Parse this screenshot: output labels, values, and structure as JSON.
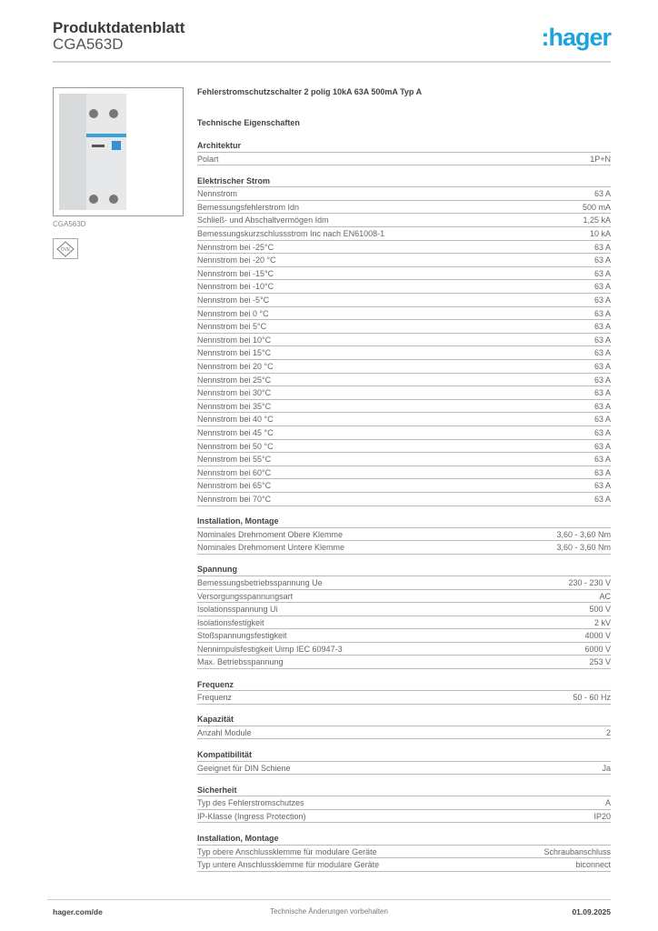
{
  "header": {
    "title": "Produktdatenblatt",
    "code": "CGA563D",
    "logo": ":hager",
    "logo_color": "#1ea3dc"
  },
  "image_caption": "CGA563D",
  "cert_icon": "vde-certification-icon",
  "product_name": "Fehlerstromschutzschalter 2 polig 10kA 63A 500mA Typ A",
  "tech_heading": "Technische Eigenschaften",
  "sections": [
    {
      "title": "Architektur",
      "rows": [
        [
          "Polart",
          "1P+N"
        ]
      ]
    },
    {
      "title": "Elektrischer Strom",
      "rows": [
        [
          "Nennstrom",
          "63 A"
        ],
        [
          "Bemessungsfehlerstrom Idn",
          "500 mA"
        ],
        [
          "Schließ- und Abschaltvermögen Idm",
          "1,25 kA"
        ],
        [
          "Bemessungskurzschlussstrom Inc nach EN61008-1",
          "10 kA"
        ],
        [
          "Nennstrom bei -25°C",
          "63 A"
        ],
        [
          "Nennstrom bei -20 °C",
          "63 A"
        ],
        [
          "Nennstrom bei -15°C",
          "63 A"
        ],
        [
          "Nennstrom bei -10°C",
          "63 A"
        ],
        [
          "Nennstrom bei -5°C",
          "63 A"
        ],
        [
          "Nennstrom bei 0 °C",
          "63 A"
        ],
        [
          "Nennstrom bei 5°C",
          "63 A"
        ],
        [
          "Nennstrom bei 10°C",
          "63 A"
        ],
        [
          "Nennstrom bei 15°C",
          "63 A"
        ],
        [
          "Nennstrom bei 20 °C",
          "63 A"
        ],
        [
          "Nennstrom bei 25°C",
          "63 A"
        ],
        [
          "Nennstrom bei 30°C",
          "63 A"
        ],
        [
          "Nennstrom bei 35°C",
          "63 A"
        ],
        [
          "Nennstrom bei 40 °C",
          "63 A"
        ],
        [
          "Nennstrom bei 45 °C",
          "63 A"
        ],
        [
          "Nennstrom bei 50 °C",
          "63 A"
        ],
        [
          "Nennstrom bei 55°C",
          "63 A"
        ],
        [
          "Nennstrom bei 60°C",
          "63 A"
        ],
        [
          "Nennstrom bei 65°C",
          "63 A"
        ],
        [
          "Nennstrom bei 70°C",
          "63 A"
        ]
      ]
    },
    {
      "title": "Installation, Montage",
      "rows": [
        [
          "Nominales Drehmoment Obere Klemme",
          "3,60 - 3,60 Nm"
        ],
        [
          "Nominales Drehmoment Untere Klemme",
          "3,60 - 3,60 Nm"
        ]
      ]
    },
    {
      "title": "Spannung",
      "rows": [
        [
          "Bemessungsbetriebsspannung Ue",
          "230 - 230 V"
        ],
        [
          "Versorgungsspannungsart",
          "AC"
        ],
        [
          "Isolationsspannung Ui",
          "500 V"
        ],
        [
          "Isolationsfestigkeit",
          "2 kV"
        ],
        [
          "Stoßspannungsfestigkeit",
          "4000 V"
        ],
        [
          "Nennimpulsfestigkeit Uimp IEC 60947-3",
          "6000 V"
        ],
        [
          "Max. Betriebsspannung",
          "253 V"
        ]
      ]
    },
    {
      "title": "Frequenz",
      "rows": [
        [
          "Frequenz",
          "50 - 60 Hz"
        ]
      ]
    },
    {
      "title": "Kapazität",
      "rows": [
        [
          "Anzahl Module",
          "2"
        ]
      ]
    },
    {
      "title": "Kompatibilität",
      "rows": [
        [
          "Geeignet für DIN Schiene",
          "Ja"
        ]
      ]
    },
    {
      "title": "Sicherheit",
      "rows": [
        [
          "Typ des Fehlerstromschutzes",
          "A"
        ],
        [
          "IP-Klasse (Ingress Protection)",
          "IP20"
        ]
      ]
    },
    {
      "title": "Installation, Montage",
      "rows": [
        [
          "Typ obere Anschlussklemme für modulare Geräte",
          "Schraubanschluss"
        ],
        [
          "Typ untere Anschlussklemme für modulare Geräte",
          "biconnect"
        ]
      ]
    }
  ],
  "footer": {
    "left": "hager.com/de",
    "center": "Technische Änderungen vorbehalten",
    "right": "01.09.2025"
  }
}
